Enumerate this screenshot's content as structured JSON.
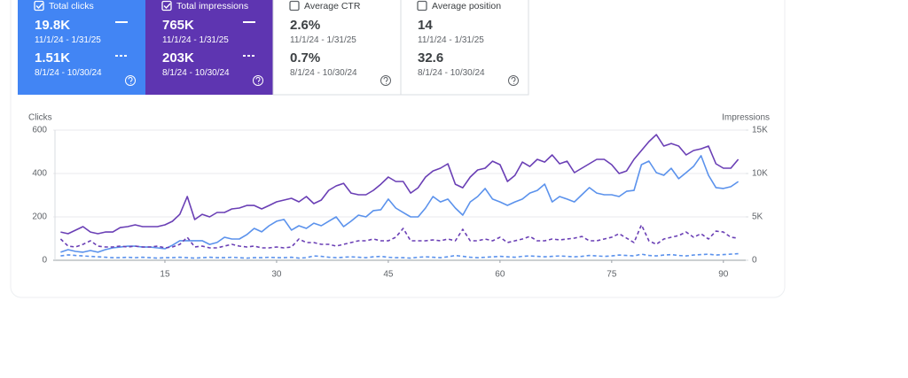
{
  "cards": [
    {
      "label": "Total clicks",
      "value": "19.8K",
      "range": "11/1/24 - 1/31/25",
      "compare_value": "1.51K",
      "compare_range": "8/1/24 - 10/30/24",
      "color": "#4285f4",
      "selected": true
    },
    {
      "label": "Total impressions",
      "value": "765K",
      "range": "11/1/24 - 1/31/25",
      "compare_value": "203K",
      "compare_range": "8/1/24 - 10/30/24",
      "color": "#5e35b1",
      "selected": true
    },
    {
      "label": "Average CTR",
      "value": "2.6%",
      "range": "11/1/24 - 1/31/25",
      "compare_value": "0.7%",
      "compare_range": "8/1/24 - 10/30/24",
      "color": "#ffffff",
      "selected": false
    },
    {
      "label": "Average position",
      "value": "14",
      "range": "11/1/24 - 1/31/25",
      "compare_value": "32.6",
      "compare_range": "8/1/24 - 10/30/24",
      "color": "#ffffff",
      "selected": false
    }
  ],
  "chart_data": {
    "type": "line",
    "y_label": "Clicks",
    "y2_label": "Impressions",
    "x": [
      1,
      2,
      3,
      4,
      5,
      6,
      7,
      8,
      9,
      10,
      11,
      12,
      13,
      14,
      15,
      16,
      17,
      18,
      19,
      20,
      21,
      22,
      23,
      24,
      25,
      26,
      27,
      28,
      29,
      30,
      31,
      32,
      33,
      34,
      35,
      36,
      37,
      38,
      39,
      40,
      41,
      42,
      43,
      44,
      45,
      46,
      47,
      48,
      49,
      50,
      51,
      52,
      53,
      54,
      55,
      56,
      57,
      58,
      59,
      60,
      61,
      62,
      63,
      64,
      65,
      66,
      67,
      68,
      69,
      70,
      71,
      72,
      73,
      74,
      75,
      76,
      77,
      78,
      79,
      80,
      81,
      82,
      83,
      84,
      85,
      86,
      87,
      88,
      89,
      90,
      91,
      92
    ],
    "xlim": [
      0,
      93
    ],
    "xticks": [
      15,
      30,
      45,
      60,
      75,
      90
    ],
    "ylim": [
      0,
      600
    ],
    "yticks": [
      0,
      200,
      400,
      600
    ],
    "y2lim": [
      0,
      15000
    ],
    "y2ticks": [
      0,
      {
        "value": 5000,
        "label": "5K"
      },
      {
        "value": 10000,
        "label": "10K"
      },
      {
        "value": 15000,
        "label": "15K"
      }
    ],
    "grid": true,
    "series": [
      {
        "color": "#5b92ec",
        "style": "solid",
        "values": [
          37,
          49,
          41,
          37,
          45,
          37,
          49,
          57,
          61,
          65,
          65,
          61,
          61,
          57,
          53,
          69,
          90,
          90,
          90,
          90,
          73,
          82,
          106,
          98,
          98,
          118,
          147,
          131,
          159,
          180,
          188,
          139,
          159,
          147,
          171,
          159,
          180,
          200,
          155,
          180,
          208,
          200,
          229,
          233,
          282,
          241,
          220,
          200,
          200,
          241,
          294,
          269,
          282,
          241,
          208,
          269,
          294,
          331,
          282,
          269,
          253,
          269,
          282,
          310,
          322,
          351,
          269,
          294,
          282,
          269,
          302,
          335,
          310,
          302,
          302,
          294,
          318,
          322,
          441,
          457,
          404,
          392,
          424,
          376,
          404,
          433,
          482,
          392,
          335,
          331,
          339,
          363
        ]
      },
      {
        "color": "#5b92ec",
        "style": "dashed",
        "values": [
          20,
          25,
          22,
          20,
          18,
          16,
          14,
          12,
          12,
          14,
          12,
          14,
          12,
          10,
          12,
          12,
          14,
          12,
          10,
          12,
          14,
          12,
          12,
          14,
          12,
          10,
          12,
          12,
          14,
          12,
          12,
          14,
          10,
          12,
          20,
          18,
          14,
          12,
          14,
          16,
          14,
          12,
          16,
          18,
          14,
          12,
          12,
          10,
          14,
          16,
          14,
          12,
          16,
          22,
          18,
          14,
          12,
          14,
          16,
          18,
          16,
          14,
          18,
          20,
          18,
          16,
          18,
          20,
          18,
          16,
          18,
          22,
          20,
          18,
          20,
          24,
          22,
          20,
          28,
          22,
          20,
          24,
          26,
          22,
          20,
          24,
          26,
          28,
          24,
          26,
          28,
          30
        ]
      },
      {
        "color": "#6a3fb5",
        "style": "solid",
        "axis": "y2",
        "values": [
          3260,
          3060,
          3470,
          3880,
          3260,
          3060,
          3260,
          3260,
          3770,
          3880,
          4080,
          3880,
          3880,
          3880,
          4080,
          4490,
          5300,
          7350,
          4690,
          5300,
          5000,
          5510,
          5510,
          5920,
          6020,
          6320,
          6320,
          5920,
          6320,
          6730,
          6940,
          7140,
          6730,
          7350,
          6530,
          6940,
          8060,
          8570,
          8870,
          7750,
          7550,
          7550,
          8060,
          8770,
          9590,
          9080,
          9080,
          7750,
          8360,
          9590,
          10300,
          10610,
          11120,
          8770,
          8360,
          9590,
          10410,
          10610,
          11420,
          11020,
          9080,
          9790,
          11320,
          10810,
          11630,
          11320,
          12140,
          11120,
          11420,
          10100,
          10610,
          11120,
          11630,
          11630,
          11020,
          10000,
          10300,
          11630,
          12650,
          13670,
          14480,
          13160,
          13460,
          13160,
          12140,
          12650,
          12850,
          13160,
          11120,
          10610,
          10610,
          11630
        ]
      },
      {
        "color": "#6a3fb5",
        "style": "dashed",
        "axis": "y2",
        "values": [
          2450,
          1630,
          1530,
          1840,
          2240,
          1630,
          1530,
          1530,
          1630,
          1530,
          1630,
          1530,
          1530,
          1630,
          1430,
          1530,
          1840,
          2650,
          1530,
          1630,
          1430,
          1430,
          1630,
          1840,
          1630,
          1530,
          1630,
          1430,
          1430,
          1530,
          1430,
          1530,
          2450,
          2040,
          2040,
          1840,
          1840,
          1630,
          1840,
          2040,
          2240,
          2240,
          2450,
          2240,
          2240,
          2650,
          3670,
          2240,
          2240,
          2240,
          2350,
          2240,
          2450,
          2240,
          3570,
          2240,
          2240,
          2450,
          2240,
          2650,
          2040,
          2240,
          2450,
          2750,
          2240,
          2240,
          2450,
          2350,
          2450,
          2550,
          2750,
          2240,
          2240,
          2450,
          2650,
          3060,
          2550,
          2040,
          4080,
          2240,
          1840,
          2450,
          2650,
          2850,
          3260,
          2650,
          3060,
          2450,
          3360,
          3260,
          2650,
          2550
        ]
      }
    ]
  }
}
